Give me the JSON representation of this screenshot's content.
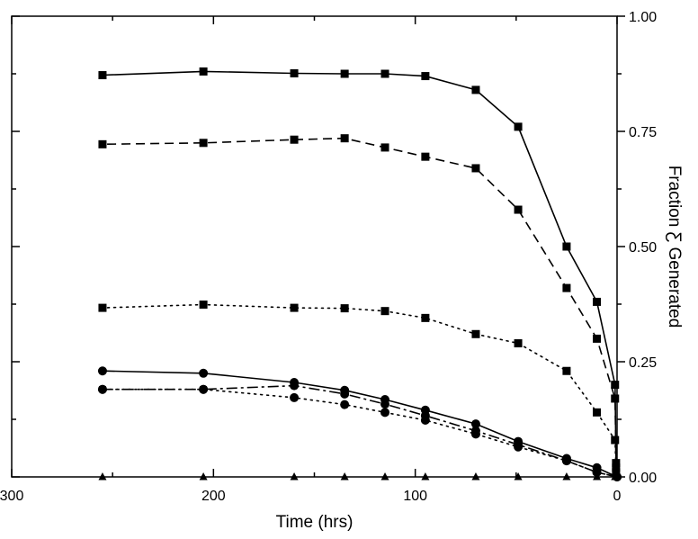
{
  "chart_data": {
    "type": "line",
    "orientation": "mirrored (x increases to the left, y axis on the right)",
    "xlabel": "Time (hrs)",
    "ylabel": "Fraction Ƹ Generated",
    "xlim": [
      0,
      300
    ],
    "ylim": [
      0.0,
      1.0
    ],
    "x_ticks": [
      "0",
      "100",
      "200",
      "300"
    ],
    "y_ticks": [
      "0.00",
      "0.25",
      "0.50",
      "0.75",
      "1.00"
    ],
    "grid": false,
    "legend": "none",
    "series": [
      {
        "line_style": "solid",
        "marker": "square",
        "x": [
          0.5,
          1,
          10,
          25,
          49,
          70,
          95,
          115,
          135,
          160,
          205,
          255
        ],
        "y": [
          0.03,
          0.2,
          0.38,
          0.5,
          0.76,
          0.84,
          0.87,
          0.875,
          0.875,
          0.876,
          0.88,
          0.872
        ]
      },
      {
        "line_style": "dashed",
        "marker": "square",
        "x": [
          0.5,
          1,
          10,
          25,
          49,
          70,
          95,
          115,
          135,
          160,
          205,
          255
        ],
        "y": [
          0.02,
          0.17,
          0.3,
          0.41,
          0.58,
          0.67,
          0.695,
          0.715,
          0.735,
          0.732,
          0.725,
          0.722
        ]
      },
      {
        "line_style": "dotted",
        "marker": "square",
        "x": [
          0.5,
          1,
          10,
          25,
          49,
          70,
          95,
          115,
          135,
          160,
          205,
          255
        ],
        "y": [
          0.01,
          0.08,
          0.14,
          0.23,
          0.29,
          0.31,
          0.345,
          0.36,
          0.366,
          0.367,
          0.374,
          0.367
        ]
      },
      {
        "line_style": "solid",
        "marker": "circle",
        "x": [
          0,
          10,
          25,
          49,
          70,
          95,
          115,
          135,
          160,
          205,
          255
        ],
        "y": [
          0.0,
          0.02,
          0.04,
          0.077,
          0.115,
          0.145,
          0.168,
          0.188,
          0.205,
          0.225,
          0.23
        ]
      },
      {
        "line_style": "dash-dot",
        "marker": "circle",
        "x": [
          0,
          10,
          25,
          49,
          70,
          95,
          115,
          135,
          160,
          205,
          255
        ],
        "y": [
          0.0,
          0.01,
          0.035,
          0.07,
          0.1,
          0.133,
          0.158,
          0.18,
          0.198,
          0.19,
          0.19
        ]
      },
      {
        "line_style": "dotted",
        "marker": "circle",
        "x": [
          0,
          10,
          25,
          49,
          70,
          95,
          115,
          135,
          160,
          205,
          255
        ],
        "y": [
          0.0,
          0.01,
          0.035,
          0.065,
          0.093,
          0.123,
          0.14,
          0.157,
          0.172,
          0.19,
          0.19
        ]
      },
      {
        "line_style": "none",
        "marker": "triangle",
        "x": [
          1,
          10,
          25,
          49,
          70,
          95,
          115,
          135,
          160,
          205,
          255
        ],
        "y": [
          0,
          0,
          0,
          0,
          0,
          0,
          0,
          0,
          0,
          0,
          0
        ]
      }
    ]
  }
}
